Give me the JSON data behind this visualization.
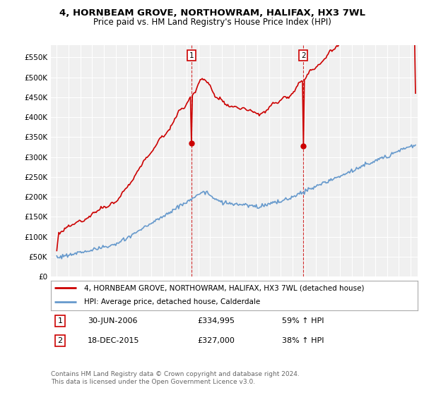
{
  "title": "4, HORNBEAM GROVE, NORTHOWRAM, HALIFAX, HX3 7WL",
  "subtitle": "Price paid vs. HM Land Registry's House Price Index (HPI)",
  "background_color": "#ffffff",
  "plot_bg_color": "#f0f0f0",
  "grid_color": "#ffffff",
  "red_line_color": "#cc0000",
  "blue_line_color": "#6699cc",
  "marker1_date": "30-JUN-2006",
  "marker1_price": "£334,995",
  "marker1_hpi": "59% ↑ HPI",
  "marker2_date": "18-DEC-2015",
  "marker2_price": "£327,000",
  "marker2_hpi": "38% ↑ HPI",
  "legend_line1": "4, HORNBEAM GROVE, NORTHOWRAM, HALIFAX, HX3 7WL (detached house)",
  "legend_line2": "HPI: Average price, detached house, Calderdale",
  "footer": "Contains HM Land Registry data © Crown copyright and database right 2024.\nThis data is licensed under the Open Government Licence v3.0.",
  "yticks": [
    0,
    50000,
    100000,
    150000,
    200000,
    250000,
    300000,
    350000,
    400000,
    450000,
    500000,
    550000
  ],
  "ylim": [
    0,
    580000
  ],
  "start_year": 1995,
  "end_year": 2025
}
